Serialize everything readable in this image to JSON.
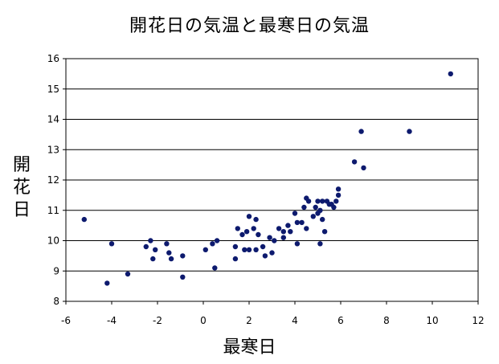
{
  "chart_data": {
    "type": "scatter",
    "title": "開花日の気温と最寒日の気温",
    "xlabel": "最寒日",
    "ylabel": "開花日",
    "xlim": [
      -6,
      12
    ],
    "ylim": [
      8,
      16
    ],
    "xticks": [
      "-6",
      "-4",
      "-2",
      "0",
      "2",
      "4",
      "6",
      "8",
      "10",
      "12"
    ],
    "yticks": [
      "8",
      "9",
      "10",
      "11",
      "12",
      "13",
      "14",
      "15",
      "16"
    ],
    "grid": "horizontal",
    "marker_color": "#0d1a6e",
    "series": [
      {
        "points": [
          [
            -5.2,
            10.7
          ],
          [
            -4.2,
            8.6
          ],
          [
            -4.0,
            9.9
          ],
          [
            -3.3,
            8.9
          ],
          [
            -2.5,
            9.8
          ],
          [
            -2.3,
            10.0
          ],
          [
            -2.2,
            9.4
          ],
          [
            -2.1,
            9.7
          ],
          [
            -1.6,
            9.9
          ],
          [
            -1.5,
            9.6
          ],
          [
            -1.4,
            9.4
          ],
          [
            -0.9,
            9.5
          ],
          [
            -0.9,
            8.8
          ],
          [
            0.1,
            9.7
          ],
          [
            0.4,
            9.9
          ],
          [
            0.5,
            9.1
          ],
          [
            0.6,
            10.0
          ],
          [
            1.4,
            9.4
          ],
          [
            1.4,
            9.8
          ],
          [
            1.5,
            10.4
          ],
          [
            1.7,
            10.2
          ],
          [
            1.8,
            9.7
          ],
          [
            1.9,
            10.3
          ],
          [
            2.0,
            10.8
          ],
          [
            2.0,
            9.7
          ],
          [
            2.2,
            10.4
          ],
          [
            2.3,
            10.7
          ],
          [
            2.3,
            9.7
          ],
          [
            2.4,
            10.2
          ],
          [
            2.6,
            9.8
          ],
          [
            2.7,
            9.5
          ],
          [
            2.9,
            10.1
          ],
          [
            3.0,
            9.6
          ],
          [
            3.1,
            10.0
          ],
          [
            3.3,
            10.4
          ],
          [
            3.5,
            10.1
          ],
          [
            3.5,
            10.3
          ],
          [
            3.7,
            10.5
          ],
          [
            3.8,
            10.3
          ],
          [
            4.0,
            10.9
          ],
          [
            4.1,
            9.9
          ],
          [
            4.1,
            10.6
          ],
          [
            4.3,
            10.6
          ],
          [
            4.4,
            11.1
          ],
          [
            4.5,
            11.4
          ],
          [
            4.5,
            10.4
          ],
          [
            4.6,
            11.3
          ],
          [
            4.8,
            10.8
          ],
          [
            4.9,
            11.1
          ],
          [
            5.0,
            11.3
          ],
          [
            5.0,
            10.9
          ],
          [
            5.1,
            11.0
          ],
          [
            5.1,
            9.9
          ],
          [
            5.2,
            10.7
          ],
          [
            5.2,
            11.3
          ],
          [
            5.3,
            10.3
          ],
          [
            5.4,
            11.3
          ],
          [
            5.5,
            11.2
          ],
          [
            5.6,
            11.2
          ],
          [
            5.7,
            11.1
          ],
          [
            5.8,
            11.3
          ],
          [
            5.9,
            11.5
          ],
          [
            5.9,
            11.7
          ],
          [
            6.6,
            12.6
          ],
          [
            6.9,
            13.6
          ],
          [
            7.0,
            12.4
          ],
          [
            9.0,
            13.6
          ],
          [
            10.8,
            15.5
          ]
        ]
      }
    ]
  }
}
